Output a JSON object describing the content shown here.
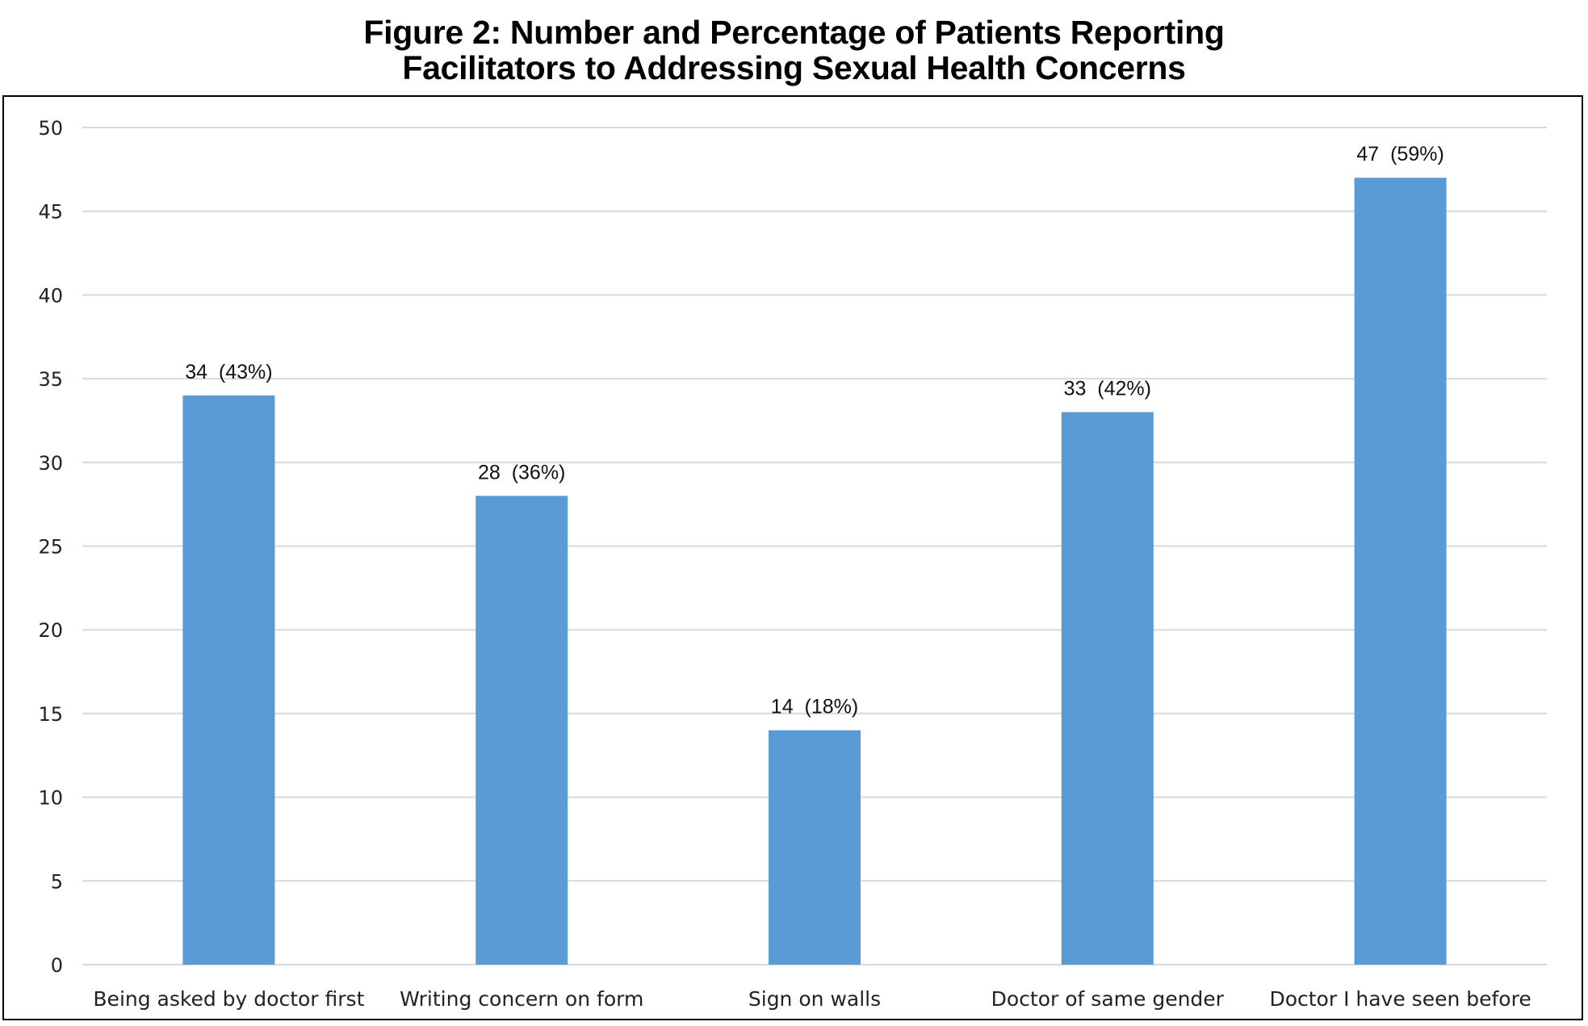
{
  "chart_data": {
    "type": "bar",
    "title": "Figure 2: Number and Percentage of Patients Reporting Facilitators to Addressing Sexual Health Concerns",
    "title_lines": [
      "Figure 2: Number and Percentage of Patients Reporting",
      "Facilitators to Addressing Sexual Health Concerns"
    ],
    "categories": [
      "Being asked by doctor first",
      "Writing concern on form",
      "Sign on walls",
      "Doctor of same gender",
      "Doctor I have seen before"
    ],
    "values": [
      34,
      28,
      14,
      33,
      47
    ],
    "data_labels": [
      "34  (43%)",
      "28  (36%)",
      "14  (18%)",
      "33  (42%)",
      "47  (59%)"
    ],
    "xlabel": "",
    "ylabel": "",
    "ylim": [
      0,
      50
    ],
    "yticks": [
      0,
      5,
      10,
      15,
      20,
      25,
      30,
      35,
      40,
      45,
      50
    ],
    "grid": true,
    "legend": "none",
    "bar_color": "#5B9BD5",
    "grid_color": "#D9D9D9"
  }
}
